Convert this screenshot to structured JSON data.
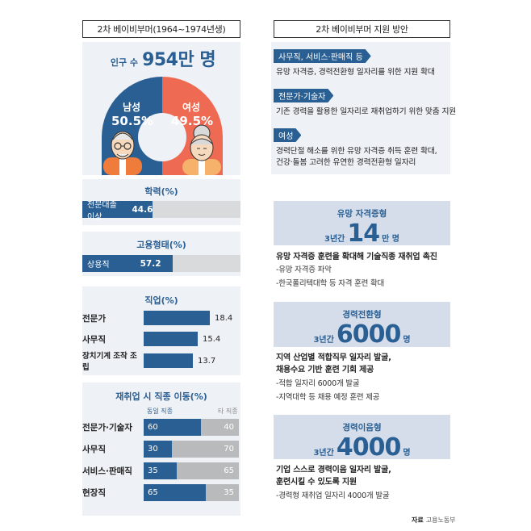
{
  "left": {
    "header": "2차 베이비부머(1964~1974년생)",
    "population": {
      "label": "인구 수",
      "value": "954만 명"
    },
    "gender": {
      "male": {
        "label": "남성",
        "pct": "50.5%"
      },
      "female": {
        "label": "여성",
        "pct": "49.5%"
      }
    },
    "colors": {
      "male": "#2a5f93",
      "female": "#ef6a52",
      "bar": "#2a5f93",
      "bar_bg": "#d9dadb"
    },
    "education": {
      "title": "학력(%)",
      "label": "전문대졸 이상",
      "value": "44.6",
      "pct": 44.6
    },
    "employment": {
      "title": "고용형태(%)",
      "label": "상용직",
      "value": "57.2",
      "pct": 57.2
    },
    "jobs": {
      "title": "직업(%)",
      "rows": [
        {
          "label": "전문가",
          "value": "18.4",
          "num": 18.4
        },
        {
          "label": "사무직",
          "value": "15.4",
          "num": 15.4
        },
        {
          "label": "장치기계 조작 조립",
          "value": "13.7",
          "num": 13.7
        }
      ]
    },
    "moves": {
      "title": "재취업 시 직종 이동(%)",
      "legend_same": "동일 직종",
      "legend_other": "타 직종",
      "rows": [
        {
          "label": "전문가·기술자",
          "same": "60",
          "other": "40",
          "same_num": 60
        },
        {
          "label": "사무직",
          "same": "30",
          "other": "70",
          "same_num": 30
        },
        {
          "label": "서비스·판매직",
          "same": "35",
          "other": "65",
          "same_num": 35
        },
        {
          "label": "현장직",
          "same": "65",
          "other": "35",
          "same_num": 65
        }
      ]
    }
  },
  "right": {
    "header": "2차 베이비부머 지원 방안",
    "groups": [
      {
        "tag": "사무직, 서비스·판매직 등",
        "desc": "유망 자격증, 경력전환형 일자리를 위한 지원 확대"
      },
      {
        "tag": "전문가·기술자",
        "desc": "기존 경력을 활용한 일자리로 재취업하기 위한 맞춤 지원"
      },
      {
        "tag": "여성",
        "desc1": "경력단절 해소를 위한 유망 자격증 취득 훈련 확대,",
        "desc2": "건강·돌봄 고려한 유연한 경력전환형 일자리"
      }
    ],
    "cards": [
      {
        "title": "유망 자격증형",
        "prefix": "3년간",
        "big": "14",
        "suffix": "만 명",
        "head1": "유망 자격증 훈련을 확대해 기술직종 재취업 촉진",
        "bullets": [
          "-유망 자격증 파악",
          "-한국폴리텍대학 등 자격 훈련 확대"
        ]
      },
      {
        "title": "경력전환형",
        "prefix": "3년간",
        "big": "6000",
        "suffix": "명",
        "head1": "지역 산업별 적합직무 일자리 발굴,",
        "head2": "채용수요 기반 훈련 기회 제공",
        "bullets": [
          "-적합 일자리 6000개 발굴",
          "-지역대학 등 채용 예정 훈련 제공"
        ]
      },
      {
        "title": "경력이음형",
        "prefix": "3년간",
        "big": "4000",
        "suffix": "명",
        "head1": "기업 스스로 경력이음 일자리 발굴,",
        "head2": "훈련시킬 수 있도록 지원",
        "bullets": [
          "-경력형 재취업 일자리 4000개 발굴"
        ]
      }
    ],
    "source_label": "자료",
    "source": "고용노동부"
  }
}
